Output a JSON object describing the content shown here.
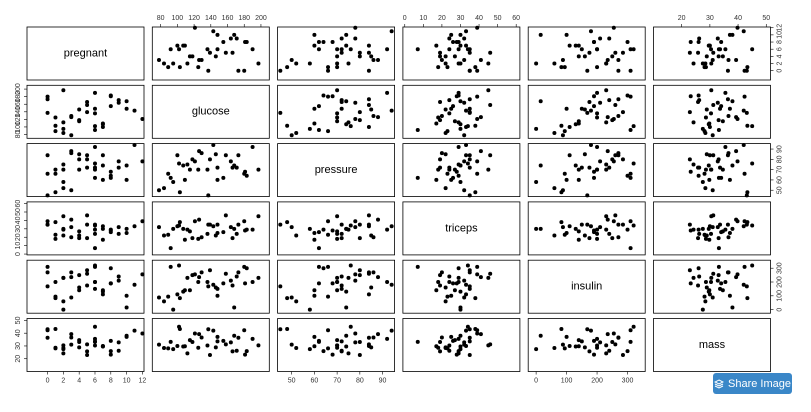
{
  "chart_data": {
    "type": "scatter_matrix",
    "color": "#000000",
    "variables": [
      {
        "name": "pregnant",
        "lim": [
          -2.6,
          12.2
        ],
        "ticks": [
          0,
          2,
          4,
          6,
          8,
          10,
          12
        ],
        "values": [
          1,
          0,
          6,
          8,
          3,
          2,
          10,
          7,
          5,
          4,
          1,
          9,
          6,
          12,
          0,
          3,
          7,
          2,
          5,
          8,
          6,
          11,
          4,
          1,
          3,
          7,
          9,
          2,
          6,
          5,
          10,
          0,
          8,
          4,
          6,
          2
        ]
      },
      {
        "name": "glucose",
        "lim": [
          70,
          210
        ],
        "ticks": [
          80,
          100,
          120,
          140,
          160,
          180,
          200
        ],
        "values": [
          89,
          137,
          148,
          183,
          78,
          197,
          168,
          107,
          166,
          115,
          103,
          171,
          190,
          121,
          180,
          126,
          100,
          84,
          139,
          155,
          92,
          143,
          146,
          125,
          129,
          109,
          164,
          112,
          102,
          158,
          148,
          173,
          181,
          118,
          136,
          95
        ]
      },
      {
        "name": "pressure",
        "lim": [
          43.8,
          95.3
        ],
        "ticks": [
          50,
          60,
          70,
          80,
          90
        ],
        "values": [
          66,
          45,
          72,
          64,
          50,
          70,
          74,
          74,
          72,
          70,
          48,
          72,
          92,
          78,
          66,
          88,
          84,
          52,
          80,
          62,
          62,
          94,
          85,
          70,
          86,
          60,
          78,
          75,
          76,
          84,
          60,
          84,
          68,
          80,
          70,
          58
        ]
      },
      {
        "name": "triceps",
        "lim": [
          -1,
          62
        ],
        "ticks": [
          0,
          10,
          20,
          30,
          40,
          50,
          60
        ],
        "values": [
          23,
          35,
          35,
          29,
          32,
          45,
          30,
          30,
          19,
          27,
          38,
          24,
          29,
          39,
          39,
          41,
          33,
          22,
          35,
          26,
          7,
          33,
          22,
          18,
          20,
          17,
          32,
          29,
          34,
          46,
          25,
          35,
          28,
          19,
          24,
          30
        ]
      },
      {
        "name": "insulin",
        "lim": [
          -26,
          358
        ],
        "ticks": [
          0,
          100,
          200,
          300
        ],
        "values": [
          94,
          168,
          150,
          300,
          88,
          230,
          15,
          130,
          175,
          140,
          83,
          240,
          200,
          255,
          310,
          235,
          110,
          60,
          285,
          190,
          310,
          180,
          160,
          200,
          270,
          140,
          210,
          230,
          320,
          260,
          100,
          270,
          190,
          250,
          200,
          0
        ]
      },
      {
        "name": "mass",
        "lim": [
          10,
          51.5
        ],
        "ticks": [
          20,
          30,
          40,
          50
        ],
        "values": [
          28.1,
          43.1,
          33.6,
          26.0,
          31.0,
          30.5,
          38.0,
          29.6,
          25.8,
          34.6,
          43.3,
          26.2,
          35.5,
          39.8,
          42.3,
          39.3,
          30.0,
          28.4,
          22.9,
          34.0,
          33.2,
          42.0,
          28.9,
          28.6,
          36.6,
          29.8,
          32.8,
          24.2,
          45.0,
          31.2,
          37.1,
          36.4,
          23.2,
          33.1,
          30.4,
          27.5
        ]
      }
    ]
  },
  "share_button": "Share Image"
}
